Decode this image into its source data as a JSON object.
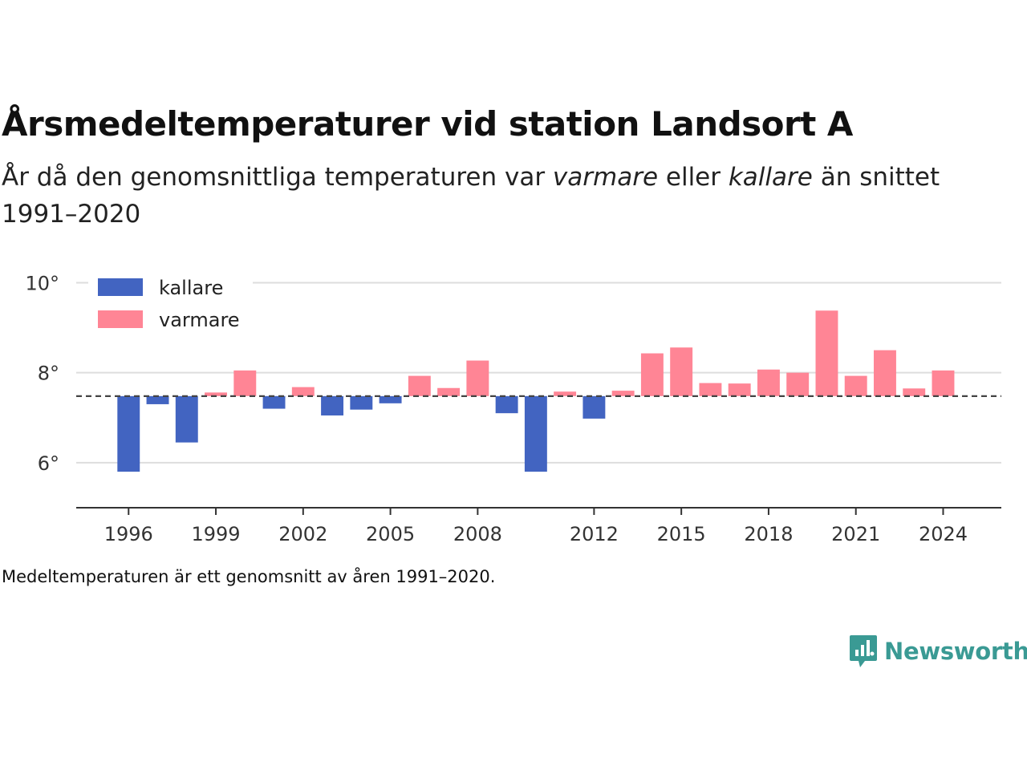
{
  "header": {
    "title": "Årsmedeltemperaturer vid station Landsort A",
    "subtitle_part1": "År då den genomsnittliga temperaturen var ",
    "subtitle_em1": "varmare",
    "subtitle_part2": " eller ",
    "subtitle_em2": "kallare",
    "subtitle_part3": " än snittet 1991–2020"
  },
  "footnote": "Medeltemperaturen är ett genomsnitt av åren 1991–2020.",
  "brand": {
    "name": "Newsworthy",
    "color": "#3a9a94"
  },
  "chart_data": {
    "type": "bar",
    "title": "Årsmedeltemperaturer vid station Landsort A",
    "baseline": 7.48,
    "ylim": [
      5,
      10.4
    ],
    "yticks": [
      6,
      8,
      10
    ],
    "ytick_labels": [
      "6°",
      "8°",
      "10°"
    ],
    "xlim": [
      1994.2,
      2026
    ],
    "xticks": [
      1996,
      1999,
      2002,
      2005,
      2008,
      2012,
      2015,
      2018,
      2021,
      2024
    ],
    "xtick_labels": [
      "1996",
      "1999",
      "2002",
      "2005",
      "2008",
      "2012",
      "2015",
      "2018",
      "2021",
      "2024"
    ],
    "grid": true,
    "legend_placement": "top-left",
    "colors": {
      "kallare": "#4264c1",
      "varmare": "#ff8595",
      "baseline": "#444444",
      "grid": "#dddddd",
      "axis": "#333333"
    },
    "series": [
      {
        "name": "kallare",
        "color": "#4264c1"
      },
      {
        "name": "varmare",
        "color": "#ff8595"
      }
    ],
    "years": [
      1996,
      1997,
      1998,
      1999,
      2000,
      2001,
      2002,
      2003,
      2004,
      2005,
      2006,
      2007,
      2008,
      2009,
      2010,
      2011,
      2012,
      2013,
      2014,
      2015,
      2016,
      2017,
      2018,
      2019,
      2020,
      2021,
      2022,
      2023,
      2024
    ],
    "values": [
      5.8,
      7.3,
      6.45,
      7.56,
      8.05,
      7.2,
      7.68,
      7.05,
      7.18,
      7.32,
      7.93,
      7.66,
      8.27,
      7.1,
      5.8,
      7.58,
      6.98,
      7.6,
      8.43,
      8.56,
      7.77,
      7.76,
      8.07,
      8.0,
      9.38,
      7.93,
      8.5,
      7.65,
      8.05
    ]
  }
}
